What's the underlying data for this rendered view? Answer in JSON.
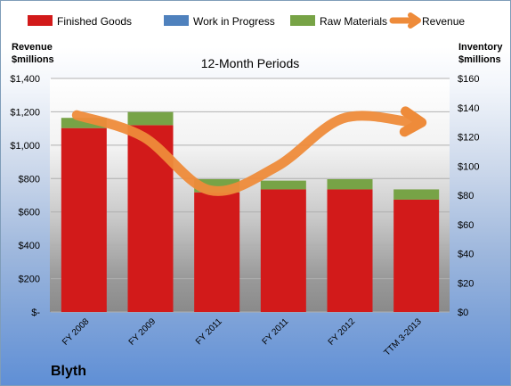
{
  "company": "Blyth",
  "chart_data": {
    "type": "bar",
    "title": "12-Month Periods",
    "categories": [
      "FY 2008",
      "FY 2009",
      "FY 2011",
      "FY 2011",
      "FY 2012",
      "TTM 3-2013"
    ],
    "series": [
      {
        "name": "Finished Goods",
        "axis": "right",
        "stacked": true,
        "color": "#d21a1a",
        "values": [
          126,
          128,
          82,
          84,
          84,
          77
        ]
      },
      {
        "name": "Work in Progress",
        "axis": "right",
        "stacked": true,
        "color": "#4f81bd",
        "values": [
          0,
          0,
          0,
          0,
          0,
          0
        ]
      },
      {
        "name": "Raw Materials",
        "axis": "right",
        "stacked": true,
        "color": "#77a346",
        "values": [
          7,
          9,
          9,
          6,
          7,
          7
        ]
      },
      {
        "name": "Revenue",
        "axis": "left",
        "type": "line",
        "color": "#ee8b3a",
        "values": [
          1180,
          1050,
          730,
          870,
          1160,
          1140
        ]
      }
    ],
    "ylabel_left": "Revenue\n$millions",
    "ylabel_right": "Inventory\n$millions",
    "ylim_left": [
      0,
      1400
    ],
    "ylim_right": [
      0,
      160
    ],
    "yticks_left": [
      "$-",
      "$200",
      "$400",
      "$600",
      "$800",
      "$1,000",
      "$1,200",
      "$1,400"
    ],
    "yticks_right": [
      "$0",
      "$20",
      "$40",
      "$60",
      "$80",
      "$100",
      "$120",
      "$140",
      "$160"
    ],
    "legend_position": "top",
    "grid": true
  }
}
